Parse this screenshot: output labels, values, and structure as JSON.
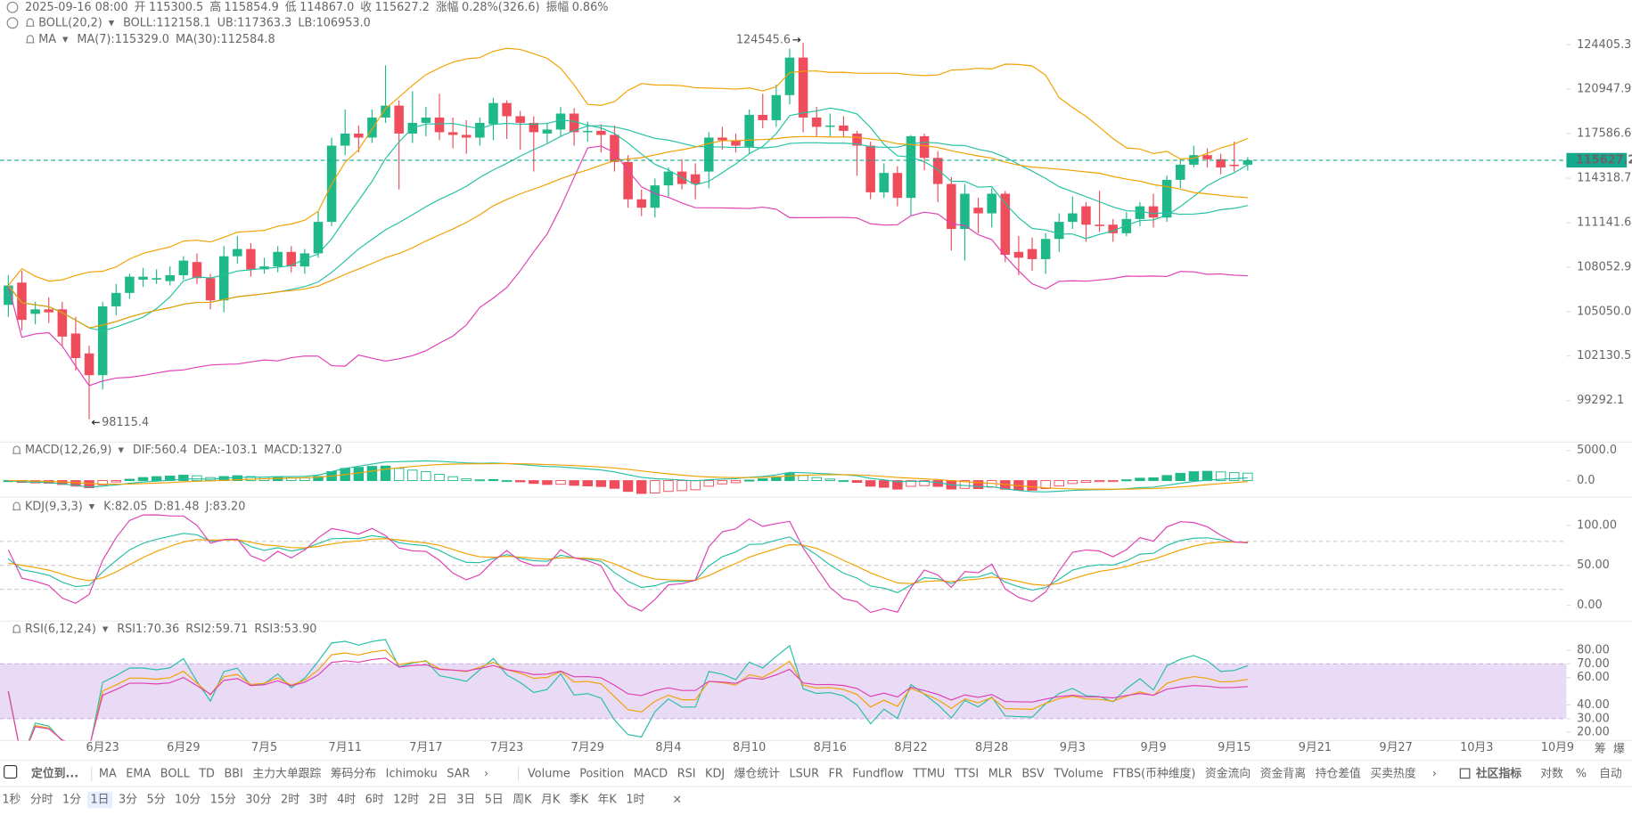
{
  "header": {
    "date": "2025-09-16 08:00",
    "fields": [
      {
        "label": "开",
        "value": "115300.5"
      },
      {
        "label": "高",
        "value": "115854.9"
      },
      {
        "label": "低",
        "value": "114867.0"
      },
      {
        "label": "收",
        "value": "115627.2"
      },
      {
        "label": "涨幅",
        "value": "0.28%(326.6)"
      },
      {
        "label": "振幅",
        "value": "0.86%"
      }
    ]
  },
  "chart_data": [
    {
      "type": "candlestick",
      "log": true,
      "up_color": "#1fb889",
      "down_color": "#ef4d5b",
      "xlim": [
        -0.62,
        115.66
      ],
      "xticks": [
        {
          "value": 7,
          "label": "6月23"
        },
        {
          "value": 13,
          "label": "6月29"
        },
        {
          "value": 19,
          "label": "7月5"
        },
        {
          "value": 25,
          "label": "7月11"
        },
        {
          "value": 31,
          "label": "7月17"
        },
        {
          "value": 37,
          "label": "7月23"
        },
        {
          "value": 43,
          "label": "7月29"
        },
        {
          "value": 49,
          "label": "8月4"
        },
        {
          "value": 55,
          "label": "8月10"
        },
        {
          "value": 61,
          "label": "8月16"
        },
        {
          "value": 67,
          "label": "8月22"
        },
        {
          "value": 73,
          "label": "8月28"
        },
        {
          "value": 79,
          "label": "9月3"
        },
        {
          "value": 85,
          "label": "9月9"
        },
        {
          "value": 91,
          "label": "9月15"
        },
        {
          "value": 97,
          "label": "9月21"
        },
        {
          "value": 103,
          "label": "9月27"
        },
        {
          "value": 109,
          "label": "10月3"
        },
        {
          "value": 115,
          "label": "10月9"
        }
      ],
      "ylim": [
        96708,
        127982
      ],
      "yticks": [
        124405.3,
        120947.9,
        117586.6,
        114318.7,
        111141.6,
        108052.9,
        {
          "value": 105050,
          "label": "105050.0"
        },
        102130.5,
        99292.1
      ],
      "open": [
        105500,
        107000,
        104900,
        105200,
        105200,
        103600,
        102300,
        100900,
        105400,
        106300,
        107200,
        107200,
        107100,
        107500,
        108400,
        107300,
        105800,
        108800,
        109300,
        107900,
        108100,
        109100,
        108100,
        109000,
        111200,
        116700,
        117600,
        117300,
        118800,
        119700,
        117600,
        118400,
        118800,
        117700,
        117500,
        117300,
        118300,
        119900,
        118900,
        118400,
        117600,
        117900,
        119100,
        117700,
        117800,
        117500,
        115500,
        112800,
        112200,
        113800,
        114800,
        114600,
        114800,
        117300,
        117100,
        116600,
        119000,
        118600,
        120500,
        123400,
        118800,
        118100,
        118200,
        117600,
        116700,
        113300,
        114700,
        112900,
        117400,
        115800,
        113900,
        110700,
        112200,
        111800,
        113200,
        109100,
        109300,
        108600,
        110000,
        111200,
        112300,
        111000,
        111000,
        110400,
        111400,
        112300,
        111500,
        114200,
        115300,
        116000,
        115700,
        115300,
        115300.5
      ],
      "high": [
        107500,
        107800,
        105700,
        106000,
        105700,
        104700,
        102800,
        105700,
        106900,
        107600,
        108000,
        107900,
        108100,
        108800,
        109000,
        107600,
        109500,
        110200,
        109700,
        108700,
        109500,
        109500,
        109300,
        111900,
        117300,
        119400,
        118200,
        119400,
        122800,
        120100,
        120800,
        119600,
        120600,
        118800,
        118600,
        118800,
        120300,
        120100,
        119300,
        118900,
        118400,
        119600,
        119500,
        118500,
        118300,
        118200,
        116000,
        113500,
        114300,
        115100,
        115700,
        115400,
        117700,
        118100,
        117600,
        119400,
        120600,
        121300,
        124100,
        124545.6,
        119600,
        119100,
        118900,
        117800,
        117000,
        115400,
        115200,
        117500,
        117600,
        116300,
        114400,
        113900,
        112900,
        113600,
        113400,
        110200,
        110100,
        110400,
        111800,
        113000,
        112600,
        113400,
        111400,
        111900,
        112600,
        113200,
        114500,
        115700,
        116700,
        116500,
        116100,
        117000,
        115854.9
      ],
      "low": [
        104700,
        103800,
        104200,
        104300,
        102800,
        101200,
        98115.4,
        100000,
        104800,
        105900,
        106700,
        106900,
        106800,
        107200,
        106900,
        105200,
        105000,
        108300,
        107400,
        107600,
        107700,
        107700,
        107600,
        108700,
        110900,
        116000,
        116200,
        116900,
        118400,
        113500,
        116900,
        117400,
        117100,
        116500,
        116100,
        116700,
        117100,
        117200,
        116400,
        114800,
        116900,
        117400,
        116700,
        117000,
        116200,
        114800,
        112200,
        111600,
        111500,
        113000,
        113500,
        112800,
        113600,
        116400,
        116200,
        116100,
        118000,
        118100,
        119800,
        117700,
        117400,
        117400,
        117300,
        114500,
        112800,
        112900,
        112300,
        111600,
        114900,
        112600,
        109200,
        108500,
        110400,
        110800,
        108400,
        107500,
        107800,
        107600,
        109100,
        110700,
        109800,
        110500,
        109800,
        110200,
        110900,
        110800,
        111200,
        113600,
        115100,
        115100,
        114600,
        114800,
        114867
      ],
      "close": [
        106800,
        104500,
        105200,
        105000,
        103400,
        102000,
        100900,
        105400,
        106300,
        107400,
        107400,
        107300,
        107500,
        108500,
        107300,
        105800,
        108800,
        109300,
        107900,
        108100,
        109100,
        108100,
        109000,
        111200,
        116700,
        117600,
        117300,
        118800,
        119700,
        117600,
        118400,
        118800,
        117700,
        117500,
        117300,
        118400,
        119900,
        118900,
        118400,
        117700,
        117900,
        119100,
        117700,
        117800,
        117500,
        115500,
        112800,
        112200,
        113800,
        114800,
        113900,
        113900,
        117300,
        117100,
        116700,
        119000,
        118600,
        120500,
        123400,
        118800,
        118100,
        118200,
        117800,
        116700,
        113300,
        114700,
        112900,
        117400,
        115800,
        113900,
        110700,
        113200,
        111800,
        113200,
        108900,
        108700,
        108600,
        110000,
        111200,
        111800,
        111000,
        110900,
        110400,
        111400,
        112300,
        111500,
        114200,
        115300,
        116000,
        115700,
        115100,
        115200,
        115627.2
      ],
      "last_color": "#14a88e",
      "indicators": [
        {
          "name": "BOLL(20,2)",
          "kind": "boll",
          "params": [
            20,
            2
          ],
          "items": [
            {
              "text": "BOLL:112158.1",
              "color": "#27bfa6"
            },
            {
              "text": "UB:117363.3",
              "color": "#f2a100"
            },
            {
              "text": "LB:106953.0",
              "color": "#e03fb4"
            }
          ]
        },
        {
          "name": "MA",
          "kind": "ma",
          "params": [
            7,
            30
          ],
          "items": [
            {
              "text": "MA(7):115329.0",
              "color": "#1fc3a0"
            },
            {
              "text": "MA(30):112584.8",
              "color": "#f0a000"
            }
          ]
        }
      ]
    },
    {
      "type": "macd",
      "name": "MACD(12,26,9)",
      "params": [
        12,
        26,
        9
      ],
      "ylim": [
        -2759,
        6380
      ],
      "yticks": [
        {
          "value": 5000,
          "label": "5000.0"
        },
        {
          "value": 0,
          "label": "0.0"
        }
      ],
      "items": [
        {
          "text": "DIF:560.4",
          "color": "#27bfa6"
        },
        {
          "text": "DEA:-103.1",
          "color": "#f2a100"
        },
        {
          "text": "MACD:1327.0",
          "color": "#e03fb4"
        }
      ]
    },
    {
      "type": "kdj",
      "name": "KDJ(9,3,3)",
      "params": [
        9,
        3,
        3
      ],
      "ylim": [
        -19.5,
        135.1
      ],
      "levels": [
        80,
        50,
        20
      ],
      "yticks": [
        {
          "value": 100,
          "label": "100.00"
        },
        {
          "value": 50,
          "label": "50.00"
        },
        {
          "value": 0,
          "label": "0.00"
        }
      ],
      "items": [
        {
          "text": "K:82.05",
          "color": "#27bfa6"
        },
        {
          "text": "D:81.48",
          "color": "#f2a100"
        },
        {
          "text": "J:83.20",
          "color": "#e03fb4"
        }
      ]
    },
    {
      "type": "rsi",
      "name": "RSI(6,12,24)",
      "params": [
        6,
        12,
        24
      ],
      "ylim": [
        13.9,
        101.3
      ],
      "band": [
        30,
        70
      ],
      "band_color": "#e3d2f3",
      "yticks": [
        {
          "value": 80,
          "label": "80.00"
        },
        {
          "value": 70,
          "label": "70.00"
        },
        {
          "value": 60,
          "label": "60.00"
        },
        {
          "value": 40,
          "label": "40.00"
        },
        {
          "value": 30,
          "label": "30.00"
        },
        {
          "value": 20,
          "label": "20.00"
        }
      ],
      "items": [
        {
          "text": "RSI1:70.36",
          "color": "#27bfa6"
        },
        {
          "text": "RSI2:59.71",
          "color": "#f2a100"
        },
        {
          "text": "RSI3:53.90",
          "color": "#e03fb4"
        }
      ]
    }
  ],
  "side_labels": [
    "筹",
    "爆"
  ],
  "toolbar": {
    "locate": "定位到...",
    "group1": [
      {
        "text": "MA",
        "active": true
      },
      {
        "text": "EMA",
        "active": false
      },
      {
        "text": "BOLL",
        "active": true
      },
      {
        "text": "TD",
        "active": false
      },
      {
        "text": "BBI",
        "active": false
      },
      {
        "text": "主力大单跟踪",
        "active": false
      },
      {
        "text": "筹码分布",
        "active": false
      },
      {
        "text": "Ichimoku",
        "active": false
      },
      {
        "text": "SAR",
        "active": false
      }
    ],
    "group2": [
      {
        "text": "Volume",
        "active": false
      },
      {
        "text": "Position",
        "active": false
      },
      {
        "text": "MACD",
        "active": true
      },
      {
        "text": "RSI",
        "active": true
      },
      {
        "text": "KDJ",
        "active": true
      },
      {
        "text": "爆仓统计",
        "active": false
      },
      {
        "text": "LSUR",
        "active": false
      },
      {
        "text": "FR",
        "active": false
      },
      {
        "text": "Fundflow",
        "active": false
      },
      {
        "text": "TTMU",
        "active": false
      },
      {
        "text": "TTSI",
        "active": false
      },
      {
        "text": "MLR",
        "active": false
      },
      {
        "text": "BSV",
        "active": false
      },
      {
        "text": "TVolume",
        "active": false
      },
      {
        "text": "FTBS(币种维度)",
        "active": false
      },
      {
        "text": "资金流向",
        "active": false
      },
      {
        "text": "资金背离",
        "active": false
      },
      {
        "text": "持仓差值",
        "active": false
      },
      {
        "text": "买卖热度",
        "active": false
      }
    ],
    "community": "社区指标",
    "right": [
      {
        "text": "对数",
        "active": true
      },
      {
        "text": "%",
        "active": false
      },
      {
        "text": "自动",
        "active": true
      }
    ],
    "periods": [
      {
        "text": "1秒",
        "active": false
      },
      {
        "text": "分时",
        "active": false
      },
      {
        "text": "1分",
        "active": false
      },
      {
        "text": "1日",
        "active": true
      },
      {
        "text": "3分",
        "active": false
      },
      {
        "text": "5分",
        "active": false
      },
      {
        "text": "10分",
        "active": false
      },
      {
        "text": "15分",
        "active": false
      },
      {
        "text": "30分",
        "active": false
      },
      {
        "text": "2时",
        "active": false
      },
      {
        "text": "3时",
        "active": false
      },
      {
        "text": "4时",
        "active": false
      },
      {
        "text": "6时",
        "active": false
      },
      {
        "text": "12时",
        "active": false
      },
      {
        "text": "2日",
        "active": false
      },
      {
        "text": "3日",
        "active": false
      },
      {
        "text": "5日",
        "active": false
      },
      {
        "text": "周K",
        "active": false
      },
      {
        "text": "月K",
        "active": false
      },
      {
        "text": "季K",
        "active": false
      },
      {
        "text": "年K",
        "active": false
      },
      {
        "text": "1时",
        "active": false
      }
    ]
  }
}
